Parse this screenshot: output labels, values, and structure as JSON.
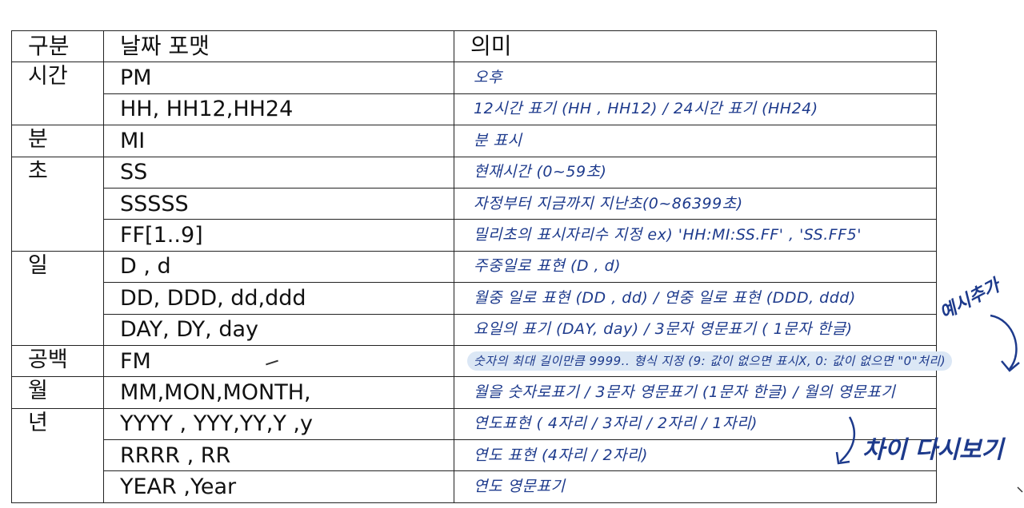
{
  "table": {
    "headers": {
      "category": "구분",
      "format": "날짜 포맷",
      "meaning": "의미"
    },
    "rows": [
      {
        "category": "시간",
        "format": "PM",
        "meaning": "오후"
      },
      {
        "format": "HH, HH12,HH24",
        "meaning": "12시간 표기 (HH , HH12) / 24시간 표기 (HH24)"
      },
      {
        "category": "분",
        "format": "MI",
        "meaning": "분 표시"
      },
      {
        "category": "초",
        "format": "SS",
        "meaning": "현재시간 (0~59초)"
      },
      {
        "format": "SSSSS",
        "meaning": "자정부터 지금까지 지난초(0~86399초)"
      },
      {
        "format": "FF[1..9]",
        "meaning": "밀리초의 표시자리수 지정 ex) 'HH:MI:SS.FF' , 'SS.FF5'"
      },
      {
        "category": "일",
        "format": "D , d",
        "meaning": "주중일로 표현 (D , d)"
      },
      {
        "format": "DD, DDD, dd,ddd",
        "meaning": "월중 일로 표현 (DD , dd) / 연중 일로 표현 (DDD, ddd)"
      },
      {
        "format": "DAY, DY, day",
        "meaning": "요일의 표기 (DAY, day) / 3문자 영문표기 ( 1문자 한글)"
      },
      {
        "category": "공백",
        "format": "FM",
        "meaning": "숫자의 최대 길이만큼 9999.. 형식 지정 (9: 값이 없으면 표시X, 0: 값이 없으면 \"0\"처리)"
      },
      {
        "category": "월",
        "format": "MM,MON,MONTH,",
        "meaning": "월을 숫자로표기 / 3문자 영문표기 (1문자 한글) / 월의 영문표기"
      },
      {
        "category": "년",
        "format": "YYYY , YYY,YY,Y ,y",
        "meaning": "연도표현 ( 4자리 / 3자리 / 2자리 / 1자리)"
      },
      {
        "format": "RRRR , RR",
        "meaning": "연도 표현 (4자리 / 2자리)"
      },
      {
        "format": "YEAR ,Year",
        "meaning": "연도 영문표기"
      }
    ]
  },
  "annotations": {
    "example_note": "예시추가",
    "difference_note": "차이 다시보기"
  },
  "colors": {
    "ink": "#1d3a8c",
    "highlight": "#dbe7f5",
    "border": "#222222"
  }
}
